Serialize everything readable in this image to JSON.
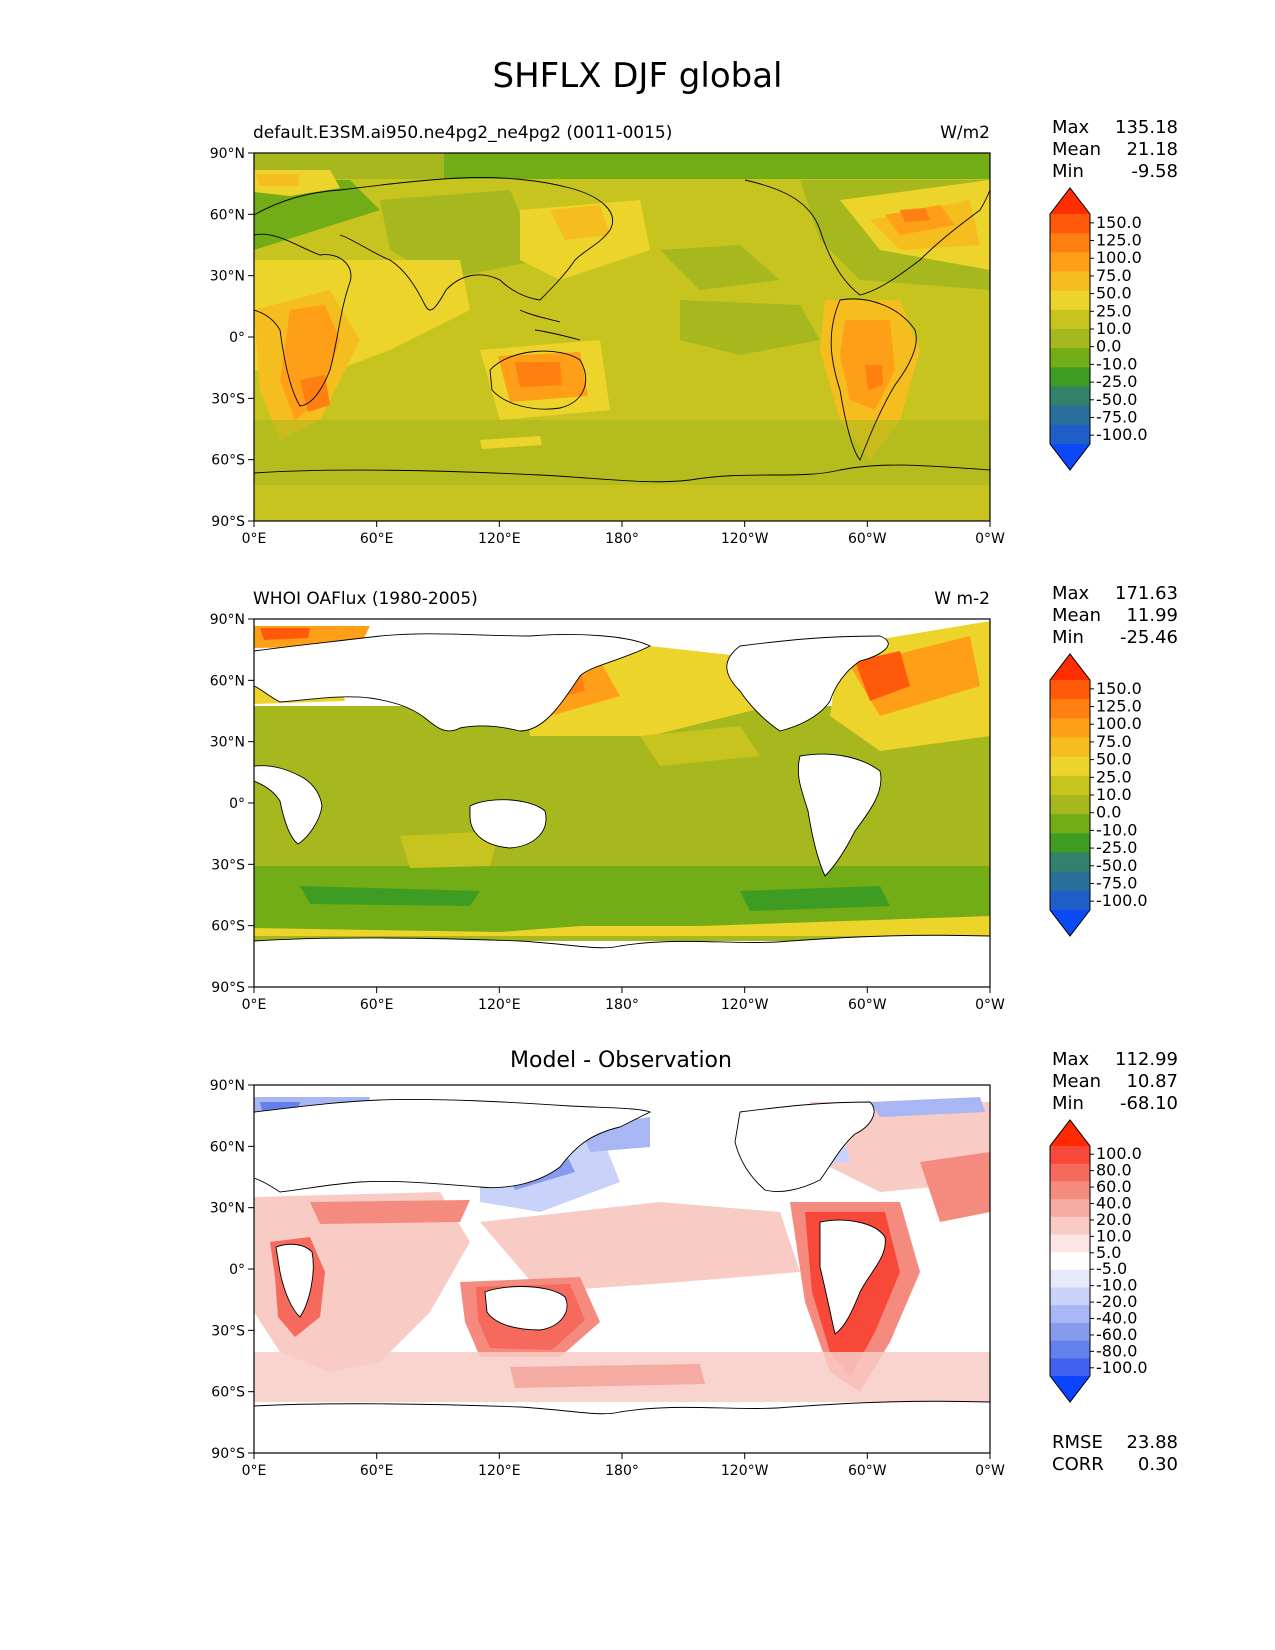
{
  "figure": {
    "title": "SHFLX DJF global"
  },
  "axes": {
    "lat_labels": [
      "90°N",
      "60°N",
      "30°N",
      "0°",
      "30°S",
      "60°S",
      "90°S"
    ],
    "lon_labels": [
      "0°E",
      "60°E",
      "120°E",
      "180°",
      "120°W",
      "60°W",
      "0°W"
    ]
  },
  "panels": [
    {
      "left_title": "default.E3SM.ai950.ne4pg2_ne4pg2 (0011-0015)",
      "center_title": "",
      "units": "W/m2",
      "stats": {
        "max_label": "Max",
        "max": "135.18",
        "mean_label": "Mean",
        "mean": "21.18",
        "min_label": "Min",
        "min": "-9.58"
      },
      "colorbar_levels": [
        "150.0",
        "125.0",
        "100.0",
        "75.0",
        "50.0",
        "25.0",
        "10.0",
        "0.0",
        "-10.0",
        "-25.0",
        "-50.0",
        "-75.0",
        "-100.0"
      ],
      "colorbar_colors": [
        "#ff2d00",
        "#ff5a0a",
        "#ff7f11",
        "#ff9f18",
        "#f5be1e",
        "#ecd42a",
        "#c8c41f",
        "#a6b81d",
        "#72ac16",
        "#3f9c22",
        "#33816a",
        "#2a6f99",
        "#1f5ec6",
        "#0a49f5"
      ]
    },
    {
      "left_title": "WHOI OAFlux (1980-2005)",
      "center_title": "",
      "units": "W m-2",
      "stats": {
        "max_label": "Max",
        "max": "171.63",
        "mean_label": "Mean",
        "mean": "11.99",
        "min_label": "Min",
        "min": "-25.46"
      },
      "colorbar_levels": [
        "150.0",
        "125.0",
        "100.0",
        "75.0",
        "50.0",
        "25.0",
        "10.0",
        "0.0",
        "-10.0",
        "-25.0",
        "-50.0",
        "-75.0",
        "-100.0"
      ],
      "colorbar_colors": [
        "#ff2d00",
        "#ff5a0a",
        "#ff7f11",
        "#ff9f18",
        "#f5be1e",
        "#ecd42a",
        "#c8c41f",
        "#a6b81d",
        "#72ac16",
        "#3f9c22",
        "#33816a",
        "#2a6f99",
        "#1f5ec6",
        "#0a49f5"
      ]
    },
    {
      "left_title": "",
      "center_title": "Model - Observation",
      "units": "",
      "stats": {
        "max_label": "Max",
        "max": "112.99",
        "mean_label": "Mean",
        "mean": "10.87",
        "min_label": "Min",
        "min": "-68.10"
      },
      "colorbar_levels": [
        "100.0",
        "80.0",
        "60.0",
        "40.0",
        "20.0",
        "10.0",
        "5.0",
        "-5.0",
        "-10.0",
        "-20.0",
        "-40.0",
        "-60.0",
        "-80.0",
        "-100.0"
      ],
      "colorbar_colors": [
        "#ff2a00",
        "#f8483a",
        "#f56a5c",
        "#f58a7e",
        "#f6aba2",
        "#f8cbc5",
        "#fbe6e3",
        "#ffffff",
        "#e5e9fb",
        "#c9d2f8",
        "#a8b6f3",
        "#879bee",
        "#6480ea",
        "#3f63ee",
        "#0a44ff"
      ],
      "rmse_label": "RMSE",
      "rmse": "23.88",
      "corr_label": "CORR",
      "corr": "0.30"
    }
  ],
  "colors": {
    "land": "#ffffff",
    "coast": "#000000"
  }
}
